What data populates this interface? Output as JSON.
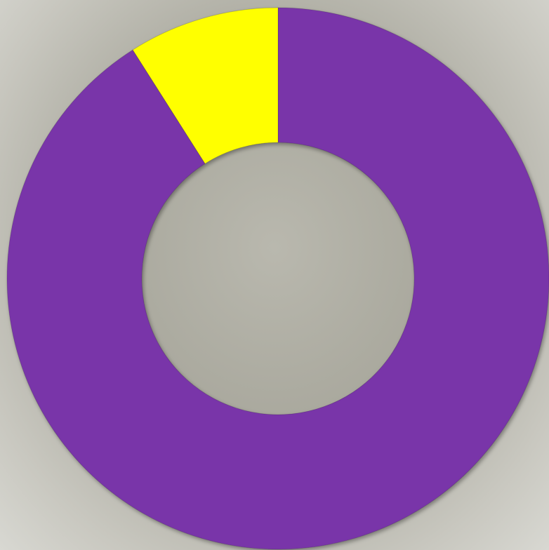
{
  "chart_data": {
    "type": "donut",
    "values": [
      91,
      9
    ],
    "colors": [
      "#7936a9",
      "#ffff00"
    ]
  }
}
